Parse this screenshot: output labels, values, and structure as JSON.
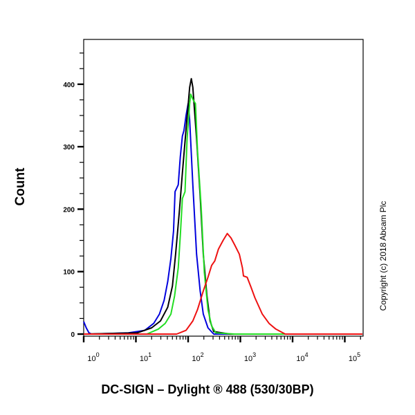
{
  "chart_data": {
    "type": "line",
    "title": "",
    "xlabel": "DC-SIGN – Dylight ® 488 (530/30BP)",
    "ylabel": "Count",
    "xscale": "log",
    "xlim": [
      1,
      220000
    ],
    "ylim": [
      0,
      471
    ],
    "x_ticks": [
      {
        "base": "10",
        "exp": "0",
        "value": 1
      },
      {
        "base": "10",
        "exp": "1",
        "value": 10
      },
      {
        "base": "10",
        "exp": "2",
        "value": 100
      },
      {
        "base": "10",
        "exp": "3",
        "value": 1000
      },
      {
        "base": "10",
        "exp": "4",
        "value": 10000
      },
      {
        "base": "10",
        "exp": "5",
        "value": 100000
      }
    ],
    "y_ticks": [
      "0",
      "100",
      "200",
      "300",
      "400"
    ],
    "grid": false,
    "annotation": "Copyright (c) 2018 Abcam Plc",
    "series": [
      {
        "color": "#0000dd",
        "points": [
          [
            1,
            20
          ],
          [
            1.12,
            10
          ],
          [
            1.26,
            2
          ],
          [
            1.41,
            0
          ],
          [
            7.2,
            2
          ],
          [
            14.8,
            6
          ],
          [
            21.9,
            17
          ],
          [
            28.2,
            32
          ],
          [
            34.7,
            54
          ],
          [
            40.7,
            84
          ],
          [
            46.8,
            121
          ],
          [
            52.5,
            165
          ],
          [
            56.2,
            228
          ],
          [
            64.6,
            239
          ],
          [
            70.8,
            284
          ],
          [
            77.6,
            317
          ],
          [
            83.2,
            326
          ],
          [
            91.2,
            350
          ],
          [
            100,
            369
          ],
          [
            107,
            343
          ],
          [
            123,
            239
          ],
          [
            145,
            128
          ],
          [
            170,
            69
          ],
          [
            195,
            32
          ],
          [
            240,
            10
          ],
          [
            309,
            0
          ],
          [
            220000,
            0
          ]
        ]
      },
      {
        "color": "#000000",
        "points": [
          [
            1,
            0
          ],
          [
            10.7,
            2
          ],
          [
            20,
            10
          ],
          [
            29.5,
            21
          ],
          [
            40.7,
            43
          ],
          [
            50.1,
            77
          ],
          [
            57.5,
            128
          ],
          [
            67.6,
            195
          ],
          [
            77.6,
            258
          ],
          [
            91.2,
            328
          ],
          [
            107,
            395
          ],
          [
            115,
            409
          ],
          [
            123,
            395
          ],
          [
            145,
            313
          ],
          [
            170,
            221
          ],
          [
            195,
            128
          ],
          [
            229,
            61
          ],
          [
            263,
            21
          ],
          [
            309,
            4
          ],
          [
            631,
            0
          ],
          [
            220000,
            0
          ]
        ]
      },
      {
        "color": "#22dd22",
        "points": [
          [
            1,
            0
          ],
          [
            16.2,
            0
          ],
          [
            26.9,
            8
          ],
          [
            36.3,
            17
          ],
          [
            46.8,
            32
          ],
          [
            55,
            61
          ],
          [
            64.6,
            106
          ],
          [
            70.8,
            158
          ],
          [
            77.6,
            217
          ],
          [
            87.1,
            228
          ],
          [
            95.5,
            313
          ],
          [
            107,
            369
          ],
          [
            112,
            384
          ],
          [
            123,
            376
          ],
          [
            138,
            369
          ],
          [
            151,
            295
          ],
          [
            178,
            202
          ],
          [
            204,
            99
          ],
          [
            240,
            39
          ],
          [
            282,
            13
          ],
          [
            339,
            2
          ],
          [
            776,
            0
          ],
          [
            220000,
            0
          ]
        ]
      },
      {
        "color": "#ee1111",
        "points": [
          [
            1,
            0
          ],
          [
            60.3,
            0
          ],
          [
            91.2,
            6
          ],
          [
            123,
            21
          ],
          [
            151,
            39
          ],
          [
            195,
            69
          ],
          [
            240,
            91
          ],
          [
            282,
            110
          ],
          [
            324,
            117
          ],
          [
            380,
            136
          ],
          [
            468,
            150
          ],
          [
            562,
            161
          ],
          [
            661,
            154
          ],
          [
            776,
            143
          ],
          [
            955,
            128
          ],
          [
            1096,
            106
          ],
          [
            1148,
            93
          ],
          [
            1349,
            91
          ],
          [
            1585,
            76
          ],
          [
            1905,
            58
          ],
          [
            2630,
            32
          ],
          [
            3548,
            17
          ],
          [
            4786,
            8
          ],
          [
            7244,
            0
          ],
          [
            220000,
            0
          ]
        ]
      }
    ]
  }
}
